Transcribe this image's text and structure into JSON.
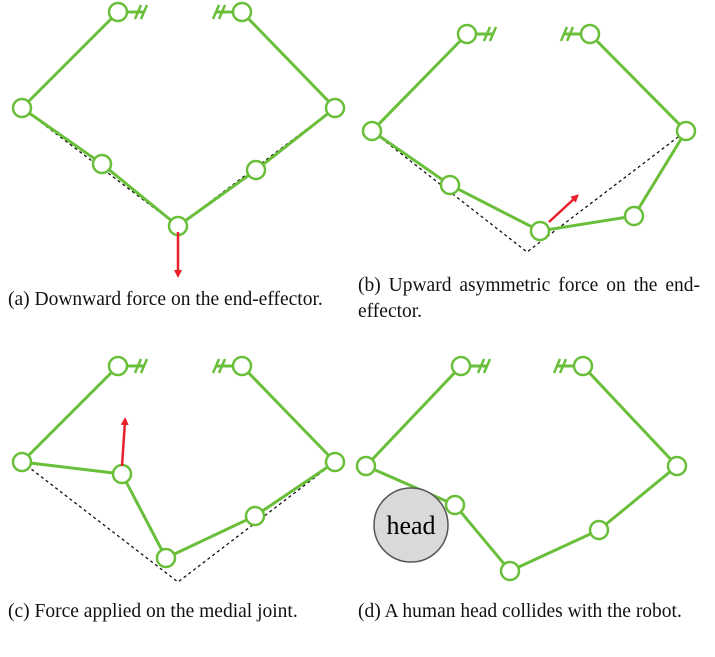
{
  "panels": [
    {
      "caption": "(a) Downward force on the end-effector."
    },
    {
      "caption": "(b) Upward asymmetric force on the end-effector."
    },
    {
      "caption": "(c) Force applied on the medial joint."
    },
    {
      "caption": "(d) A human head collides with the robot.",
      "obstacle": "head"
    }
  ]
}
